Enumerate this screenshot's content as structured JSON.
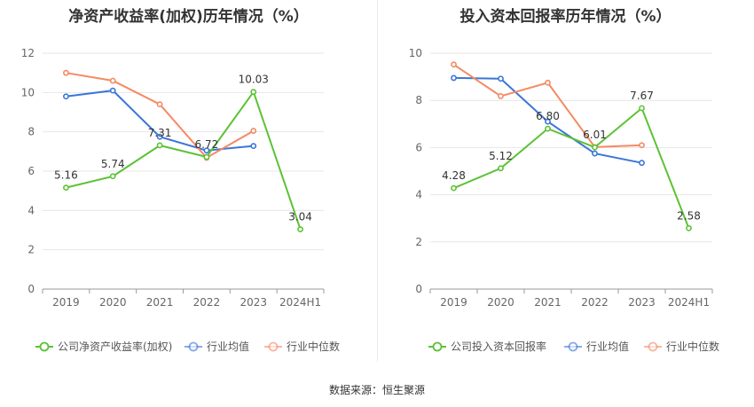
{
  "source_text": "数据来源：恒生聚源",
  "colors": {
    "company": "#5cc236",
    "industry_avg": "#3a76d8",
    "industry_median": "#f48a63"
  },
  "chart_data": [
    {
      "type": "line",
      "title": "净资产收益率(加权)历年情况（%）",
      "categories": [
        "2019",
        "2020",
        "2021",
        "2022",
        "2023",
        "2024H1"
      ],
      "ylim": [
        0,
        12
      ],
      "yticks": [
        "0",
        "2",
        "4",
        "6",
        "8",
        "10",
        "12"
      ],
      "grid": true,
      "legend_position": "bottom",
      "series": [
        {
          "name": "公司净资产收益率(加权)",
          "key": "company",
          "values": [
            5.16,
            5.74,
            7.31,
            6.72,
            10.03,
            3.04
          ],
          "labels": [
            "5.16",
            "5.74",
            "7.31",
            "6.72",
            "10.03",
            "3.04"
          ]
        },
        {
          "name": "行业均值",
          "key": "industry_avg",
          "values": [
            9.8,
            10.1,
            7.75,
            7.05,
            7.28,
            null
          ]
        },
        {
          "name": "行业中位数",
          "key": "industry_median",
          "values": [
            11.0,
            10.6,
            9.4,
            6.68,
            8.05,
            null
          ]
        }
      ]
    },
    {
      "type": "line",
      "title": "投入资本回报率历年情况（%）",
      "categories": [
        "2019",
        "2020",
        "2021",
        "2022",
        "2023",
        "2024H1"
      ],
      "ylim": [
        0,
        10
      ],
      "yticks": [
        "0",
        "2",
        "4",
        "6",
        "8",
        "10"
      ],
      "grid": true,
      "legend_position": "bottom",
      "series": [
        {
          "name": "公司投入资本回报率",
          "key": "company",
          "values": [
            4.28,
            5.12,
            6.8,
            6.01,
            7.67,
            2.58
          ],
          "labels": [
            "4.28",
            "5.12",
            "6.80",
            "6.01",
            "7.67",
            "2.58"
          ]
        },
        {
          "name": "行业均值",
          "key": "industry_avg",
          "values": [
            8.95,
            8.92,
            7.1,
            5.75,
            5.35,
            null
          ]
        },
        {
          "name": "行业中位数",
          "key": "industry_median",
          "values": [
            9.52,
            8.18,
            8.75,
            6.02,
            6.1,
            null
          ]
        }
      ]
    }
  ]
}
